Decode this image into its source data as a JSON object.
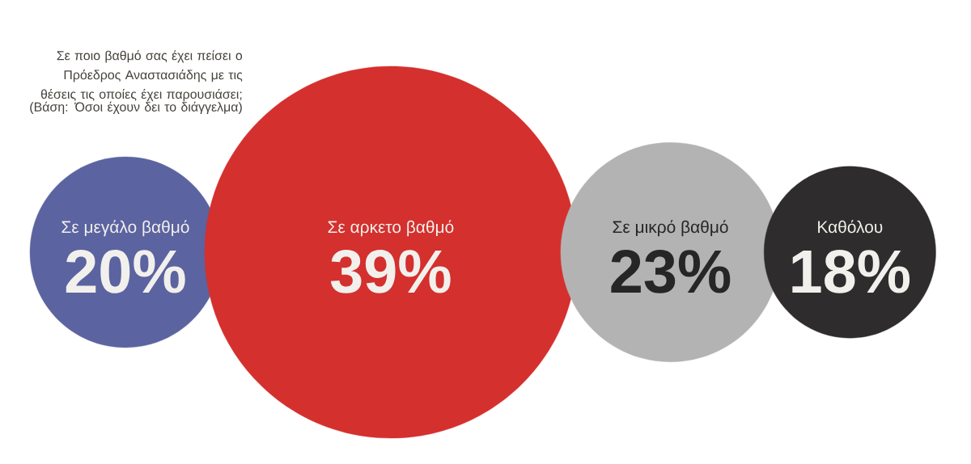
{
  "chart_data": {
    "type": "other",
    "title": "Σε ποιο βαθμό σας έχει πείσει ο Πρόεδρος Αναστασιάδης με τις θέσεις τις οποίες έχει παρουσιάσει;",
    "subtitle": "(Βάση: Όσοι έχουν δει το διάγγελμα)",
    "categories": [
      "Σε μεγάλο βαθμό",
      "Σε αρκετο βαθμό",
      "Σε μικρό βαθμό",
      "Καθόλου"
    ],
    "values": [
      20,
      39,
      23,
      18
    ],
    "value_labels": [
      "20%",
      "39%",
      "23%",
      "18%"
    ],
    "colors": [
      "#5b63a0",
      "#d4302e",
      "#b3b3b3",
      "#2e2c2c"
    ]
  }
}
